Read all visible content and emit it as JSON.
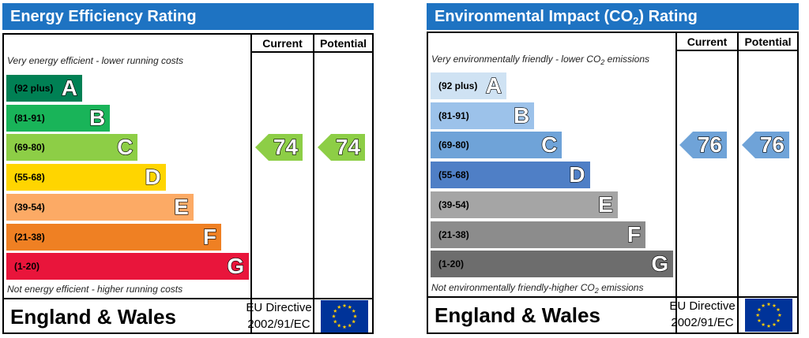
{
  "energy": {
    "title": "Energy Efficiency Rating",
    "current_label": "Current",
    "potential_label": "Potential",
    "top_note": "Very energy efficient - lower running costs",
    "bottom_note": "Not energy efficient - higher running costs",
    "bands": [
      {
        "range": "(92 plus)",
        "letter": "A",
        "color": "#008054"
      },
      {
        "range": "(81-91)",
        "letter": "B",
        "color": "#19b459"
      },
      {
        "range": "(69-80)",
        "letter": "C",
        "color": "#8dce46"
      },
      {
        "range": "(55-68)",
        "letter": "D",
        "color": "#ffd500"
      },
      {
        "range": "(39-54)",
        "letter": "E",
        "color": "#fcaa65"
      },
      {
        "range": "(21-38)",
        "letter": "F",
        "color": "#ef8023"
      },
      {
        "range": "(1-20)",
        "letter": "G",
        "color": "#e9153b"
      }
    ],
    "current": {
      "value": "74",
      "band_index": 2,
      "color": "#8dce46"
    },
    "potential": {
      "value": "74",
      "band_index": 2,
      "color": "#8dce46"
    },
    "region": "England & Wales",
    "directive_line1": "EU Directive",
    "directive_line2": "2002/91/EC"
  },
  "environment": {
    "title_prefix": "Environmental Impact (CO",
    "title_sub": "2",
    "title_suffix": ") Rating",
    "current_label": "Current",
    "potential_label": "Potential",
    "top_note_prefix": "Very environmentally friendly - lower CO",
    "top_note_sub": "2",
    "top_note_suffix": " emissions",
    "bottom_note_prefix": "Not environmentally friendly-higher CO",
    "bottom_note_sub": "2",
    "bottom_note_suffix": " emissions",
    "bands": [
      {
        "range": "(92 plus)",
        "letter": "A",
        "color": "#cfe2f3"
      },
      {
        "range": "(81-91)",
        "letter": "B",
        "color": "#9cc2ea"
      },
      {
        "range": "(69-80)",
        "letter": "C",
        "color": "#6fa3d8"
      },
      {
        "range": "(55-68)",
        "letter": "D",
        "color": "#4f7fc6"
      },
      {
        "range": "(39-54)",
        "letter": "E",
        "color": "#a5a5a5"
      },
      {
        "range": "(21-38)",
        "letter": "F",
        "color": "#8c8c8c"
      },
      {
        "range": "(1-20)",
        "letter": "G",
        "color": "#6d6d6d"
      }
    ],
    "current": {
      "value": "76",
      "band_index": 2,
      "color": "#6fa3d8"
    },
    "potential": {
      "value": "76",
      "band_index": 2,
      "color": "#6fa3d8"
    },
    "region": "England & Wales",
    "directive_line1": "EU Directive",
    "directive_line2": "2002/91/EC"
  },
  "icons": {
    "flag": "eu-flag-icon"
  }
}
